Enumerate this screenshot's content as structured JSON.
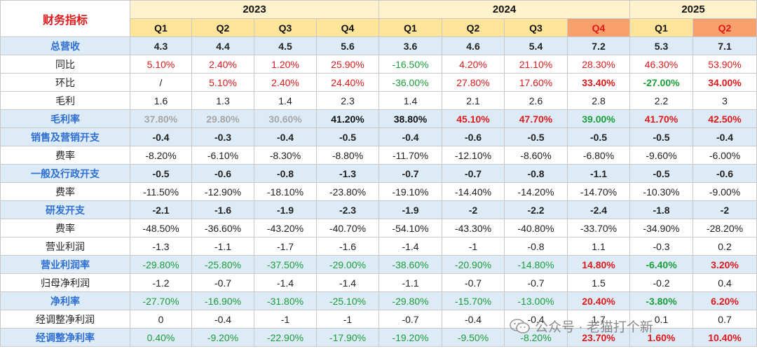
{
  "header": {
    "title": "财务指标",
    "years": [
      {
        "label": "2023",
        "span": 4
      },
      {
        "label": "2024",
        "span": 4
      },
      {
        "label": "2025",
        "span": 2
      }
    ],
    "quarters": [
      "Q1",
      "Q2",
      "Q3",
      "Q4",
      "Q1",
      "Q2",
      "Q3",
      "Q4",
      "Q1",
      "Q2"
    ],
    "highlighted_quarters": [
      7,
      9
    ]
  },
  "colors": {
    "red": "#e0191a",
    "green": "#1a9e3a",
    "grey": "#a6a6a6",
    "label_blue": "#2f6fd3",
    "row_blue_bg": "#ddebf7",
    "year_bg": "#fff2cc",
    "quarter_bg": "#ffe599",
    "quarter_highlight_bg": "#f8a06b"
  },
  "rows": [
    {
      "label": "总营收",
      "style": "blue-bold",
      "values": [
        "4.3",
        "4.4",
        "4.5",
        "5.6",
        "3.6",
        "4.6",
        "5.4",
        "7.2",
        "5.3",
        "7.1"
      ],
      "colors": [
        "",
        "",
        "",
        "",
        "",
        "",
        "",
        "",
        "",
        ""
      ],
      "bold": []
    },
    {
      "label": "同比",
      "style": "plain",
      "values": [
        "5.10%",
        "2.40%",
        "1.20%",
        "25.90%",
        "-16.50%",
        "4.20%",
        "21.10%",
        "28.30%",
        "46.30%",
        "53.90%"
      ],
      "colors": [
        "red",
        "red",
        "red",
        "red",
        "green",
        "red",
        "red",
        "red",
        "red",
        "red"
      ],
      "bold": []
    },
    {
      "label": "环比",
      "style": "plain",
      "values": [
        "/",
        "5.10%",
        "2.40%",
        "24.40%",
        "-36.00%",
        "27.80%",
        "17.60%",
        "33.40%",
        "-27.00%",
        "34.00%"
      ],
      "colors": [
        "",
        "red",
        "red",
        "red",
        "green",
        "red",
        "red",
        "red",
        "green",
        "red"
      ],
      "bold": [
        7,
        8,
        9
      ]
    },
    {
      "label": "毛利",
      "style": "plain",
      "values": [
        "1.6",
        "1.3",
        "1.4",
        "2.3",
        "1.4",
        "2.1",
        "2.6",
        "2.8",
        "2.2",
        "3"
      ],
      "colors": [
        "",
        "",
        "",
        "",
        "",
        "",
        "",
        "",
        "",
        ""
      ],
      "bold": []
    },
    {
      "label": "毛利率",
      "style": "blue-bold",
      "values": [
        "37.80%",
        "29.80%",
        "30.60%",
        "41.20%",
        "38.80%",
        "45.10%",
        "47.70%",
        "39.00%",
        "41.70%",
        "42.50%"
      ],
      "colors": [
        "grey",
        "grey",
        "grey",
        "blk",
        "blk",
        "red",
        "red",
        "green",
        "red",
        "red"
      ],
      "bold": []
    },
    {
      "label": "销售及营销开支",
      "style": "blue-bold",
      "values": [
        "-0.4",
        "-0.3",
        "-0.4",
        "-0.5",
        "-0.4",
        "-0.6",
        "-0.5",
        "-0.5",
        "-0.5",
        "-0.4"
      ],
      "colors": [
        "",
        "",
        "",
        "",
        "",
        "",
        "",
        "",
        "",
        ""
      ],
      "bold": []
    },
    {
      "label": "费率",
      "style": "plain",
      "values": [
        "-8.20%",
        "-6.10%",
        "-8.30%",
        "-8.80%",
        "-11.70%",
        "-12.10%",
        "-8.60%",
        "-6.80%",
        "-9.60%",
        "-6.00%"
      ],
      "colors": [
        "",
        "",
        "",
        "",
        "",
        "",
        "",
        "",
        "",
        ""
      ],
      "bold": []
    },
    {
      "label": "一般及行政开支",
      "style": "blue-bold",
      "values": [
        "-0.5",
        "-0.6",
        "-0.8",
        "-1.3",
        "-0.7",
        "-0.7",
        "-0.8",
        "-1.1",
        "-0.5",
        "-0.6"
      ],
      "colors": [
        "",
        "",
        "",
        "",
        "",
        "",
        "",
        "",
        "",
        ""
      ],
      "bold": []
    },
    {
      "label": "费率",
      "style": "plain",
      "values": [
        "-11.50%",
        "-12.90%",
        "-18.10%",
        "-23.80%",
        "-19.10%",
        "-14.40%",
        "-14.20%",
        "-14.70%",
        "-10.30%",
        "-9.00%"
      ],
      "colors": [
        "",
        "",
        "",
        "",
        "",
        "",
        "",
        "",
        "",
        ""
      ],
      "bold": []
    },
    {
      "label": "研发开支",
      "style": "blue-bold",
      "values": [
        "-2.1",
        "-1.6",
        "-1.9",
        "-2.3",
        "-1.9",
        "-2",
        "-2.2",
        "-2.4",
        "-1.8",
        "-2"
      ],
      "colors": [
        "",
        "",
        "",
        "",
        "",
        "",
        "",
        "",
        "",
        ""
      ],
      "bold": []
    },
    {
      "label": "费率",
      "style": "plain",
      "values": [
        "-48.50%",
        "-36.60%",
        "-43.20%",
        "-40.70%",
        "-54.10%",
        "-43.30%",
        "-40.80%",
        "-33.70%",
        "-34.90%",
        "-28.20%"
      ],
      "colors": [
        "",
        "",
        "",
        "",
        "",
        "",
        "",
        "",
        "",
        ""
      ],
      "bold": []
    },
    {
      "label": "营业利润",
      "style": "plain",
      "values": [
        "-1.3",
        "-1.1",
        "-1.7",
        "-1.6",
        "-1.4",
        "-1",
        "-0.8",
        "1.1",
        "-0.3",
        "0.2"
      ],
      "colors": [
        "",
        "",
        "",
        "",
        "",
        "",
        "",
        "",
        "",
        ""
      ],
      "bold": []
    },
    {
      "label": "营业利润率",
      "style": "blue-label",
      "values": [
        "-29.80%",
        "-25.80%",
        "-37.50%",
        "-29.00%",
        "-38.60%",
        "-20.90%",
        "-14.80%",
        "14.80%",
        "-6.40%",
        "3.20%"
      ],
      "colors": [
        "green",
        "green",
        "green",
        "green",
        "green",
        "green",
        "green",
        "red",
        "green",
        "red"
      ],
      "bold": [
        7,
        8,
        9
      ]
    },
    {
      "label": "归母净利润",
      "style": "plain",
      "values": [
        "-1.2",
        "-0.7",
        "-1.4",
        "-1.4",
        "-1.1",
        "-0.7",
        "-0.7",
        "1.5",
        "-0.2",
        "0.4"
      ],
      "colors": [
        "",
        "",
        "",
        "",
        "",
        "",
        "",
        "",
        "",
        ""
      ],
      "bold": []
    },
    {
      "label": "净利率",
      "style": "blue-label",
      "values": [
        "-27.70%",
        "-16.90%",
        "-31.80%",
        "-25.10%",
        "-29.80%",
        "-15.70%",
        "-13.00%",
        "20.40%",
        "-3.80%",
        "6.20%"
      ],
      "colors": [
        "green",
        "green",
        "green",
        "green",
        "green",
        "green",
        "green",
        "red",
        "green",
        "red"
      ],
      "bold": [
        7,
        8,
        9
      ]
    },
    {
      "label": "经调整净利润",
      "style": "plain",
      "values": [
        "0",
        "-0.4",
        "-1",
        "-1",
        "-0.7",
        "-0.4",
        "-0.4",
        "1.7",
        "0.1",
        "0.7"
      ],
      "colors": [
        "",
        "",
        "",
        "",
        "",
        "",
        "",
        "",
        "",
        ""
      ],
      "bold": []
    },
    {
      "label": "经调整净利率",
      "style": "blue-label",
      "values": [
        "0.40%",
        "-9.20%",
        "-22.90%",
        "-17.90%",
        "-19.20%",
        "-9.50%",
        "-8.20%",
        "23.70%",
        "1.60%",
        "10.40%"
      ],
      "colors": [
        "green",
        "green",
        "green",
        "green",
        "green",
        "green",
        "green",
        "red",
        "red",
        "red"
      ],
      "bold": [
        7,
        8,
        9
      ]
    }
  ],
  "watermark": {
    "text": "公众号 · 老猫打个新",
    "icon": "wechat-icon"
  }
}
